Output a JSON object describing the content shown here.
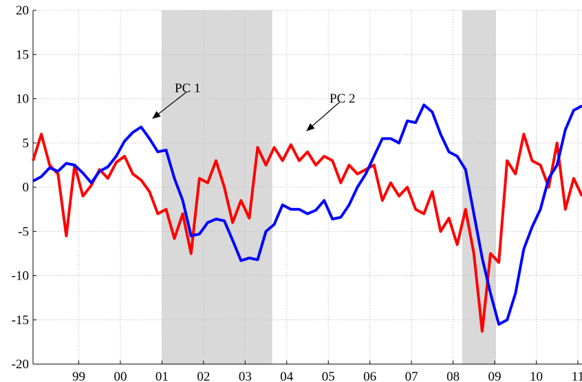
{
  "chart_data": {
    "type": "line",
    "x": [
      1997.9,
      1998.1,
      1998.3,
      1998.5,
      1998.7,
      1998.9,
      1999.1,
      1999.3,
      1999.5,
      1999.7,
      1999.9,
      2000.1,
      2000.3,
      2000.5,
      2000.7,
      2000.9,
      2001.1,
      2001.3,
      2001.5,
      2001.7,
      2001.9,
      2002.1,
      2002.3,
      2002.5,
      2002.7,
      2002.9,
      2003.1,
      2003.3,
      2003.5,
      2003.7,
      2003.9,
      2004.1,
      2004.3,
      2004.5,
      2004.7,
      2004.9,
      2005.1,
      2005.3,
      2005.5,
      2005.7,
      2005.9,
      2006.1,
      2006.3,
      2006.5,
      2006.7,
      2006.9,
      2007.1,
      2007.3,
      2007.5,
      2007.7,
      2007.9,
      2008.1,
      2008.3,
      2008.5,
      2008.7,
      2008.9,
      2009.1,
      2009.3,
      2009.5,
      2009.7,
      2009.9,
      2010.1,
      2010.3,
      2010.5,
      2010.7,
      2010.9,
      2011.1
    ],
    "series": [
      {
        "color": "#0000ff",
        "values": [
          0.7,
          1.2,
          2.2,
          1.8,
          2.7,
          2.5,
          1.6,
          0.5,
          1.8,
          2.3,
          3.5,
          5.2,
          6.2,
          6.8,
          5.5,
          4,
          4.2,
          1,
          -1.5,
          -5.5,
          -5.3,
          -4,
          -3.6,
          -3.8,
          -6,
          -8.3,
          -8,
          -8.2,
          -5,
          -4.2,
          -2,
          -2.5,
          -2.5,
          -3,
          -2.6,
          -1.5,
          -3.6,
          -3.4,
          -2,
          0,
          1.5,
          3.5,
          5.5,
          5.5,
          5,
          7.5,
          7.3,
          9.3,
          8.5,
          6,
          4,
          3.5,
          2,
          -3,
          -8,
          -12,
          -15.5,
          -15,
          -12,
          -7,
          -4.5,
          -2.5,
          1,
          2.5,
          6.5,
          8.7,
          9.2
        ]
      },
      {
        "color": "#ff0000",
        "values": [
          3,
          6,
          2.5,
          1.5,
          -5.5,
          2.5,
          -1,
          0.2,
          2,
          1,
          2.8,
          3.5,
          1.5,
          0.8,
          -0.5,
          -3,
          -2.5,
          -5.8,
          -3,
          -7.5,
          1,
          0.5,
          3,
          0,
          -4,
          -1.5,
          -3.5,
          4.5,
          2.5,
          4.5,
          3,
          4.8,
          3,
          4,
          2.5,
          3.5,
          3,
          0.5,
          2.5,
          1.5,
          2,
          2.5,
          -1.5,
          0.5,
          -1,
          0,
          -2.5,
          -3,
          -0.5,
          -5,
          -3.5,
          -6.5,
          -2.5,
          -7.5,
          -16.3,
          -7.5,
          -8.5,
          3,
          1.5,
          6,
          3,
          2.5,
          0,
          5,
          -2.5,
          1,
          -1
        ]
      }
    ],
    "shaded_regions": [
      [
        2001.0,
        2003.65
      ],
      [
        2008.22,
        2009.03
      ]
    ],
    "annotations": [
      "PC 1",
      "PC 2"
    ],
    "xlim": [
      1997.9,
      2011.1
    ],
    "xticks": [
      {
        "value": 1999,
        "label": "99"
      },
      {
        "value": 2000,
        "label": "00"
      },
      {
        "value": 2001,
        "label": "01"
      },
      {
        "value": 2002,
        "label": "02"
      },
      {
        "value": 2003,
        "label": "03"
      },
      {
        "value": 2004,
        "label": "04"
      },
      {
        "value": 2005,
        "label": "05"
      },
      {
        "value": 2006,
        "label": "06"
      },
      {
        "value": 2007,
        "label": "07"
      },
      {
        "value": 2008,
        "label": "08"
      },
      {
        "value": 2009,
        "label": "09"
      },
      {
        "value": 2010,
        "label": "10"
      },
      {
        "value": 2011,
        "label": "11"
      }
    ],
    "ylim": [
      -20,
      20
    ],
    "yticks": [
      -20,
      -15,
      -10,
      -5,
      0,
      5,
      10,
      15,
      20
    ],
    "grid": true
  }
}
